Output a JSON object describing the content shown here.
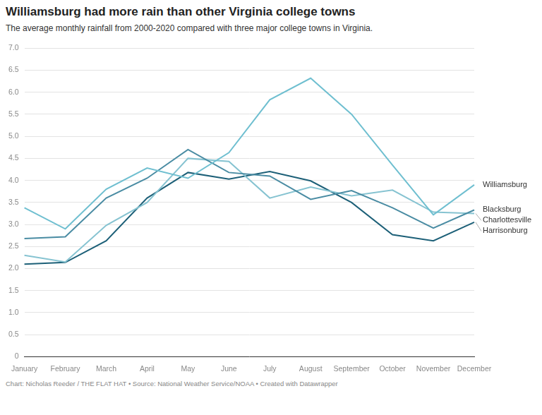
{
  "chart_data": {
    "type": "line",
    "title": "Williamsburg had more rain than other Virginia college towns",
    "subtitle": "The average monthly rainfall from 2000-2020 compared with three major college towns in Virginia.",
    "source": "Chart: Nicholas Reeder / THE FLAT HAT • Source: National Weather Service/NOAA • Created with Datawrapper",
    "categories": [
      "January",
      "February",
      "March",
      "April",
      "May",
      "June",
      "July",
      "August",
      "September",
      "October",
      "November",
      "December"
    ],
    "series": [
      {
        "name": "Williamsburg",
        "color": "#6fbfd0",
        "values": [
          3.38,
          2.9,
          3.8,
          4.28,
          4.05,
          4.63,
          5.83,
          6.32,
          5.5,
          4.35,
          3.22,
          3.9
        ]
      },
      {
        "name": "Blacksburg",
        "color": "#4a8ca3",
        "values": [
          2.68,
          2.72,
          3.6,
          4.05,
          4.7,
          4.18,
          4.1,
          3.57,
          3.77,
          3.38,
          2.92,
          3.33
        ]
      },
      {
        "name": "Charlottesville",
        "color": "#86c3d1",
        "values": [
          2.3,
          2.15,
          2.98,
          3.5,
          4.5,
          4.43,
          3.6,
          3.85,
          3.65,
          3.78,
          3.28,
          3.25
        ]
      },
      {
        "name": "Harrisonburg",
        "color": "#1d6078",
        "values": [
          2.1,
          2.14,
          2.63,
          3.6,
          4.18,
          4.03,
          4.2,
          3.99,
          3.5,
          2.77,
          2.63,
          3.05
        ]
      }
    ],
    "ylim": [
      0,
      7
    ],
    "yticks": [
      0,
      0.5,
      1,
      1.5,
      2,
      2.5,
      3,
      3.5,
      4,
      4.5,
      5,
      5.5,
      6,
      6.5,
      7
    ],
    "grid": true
  }
}
